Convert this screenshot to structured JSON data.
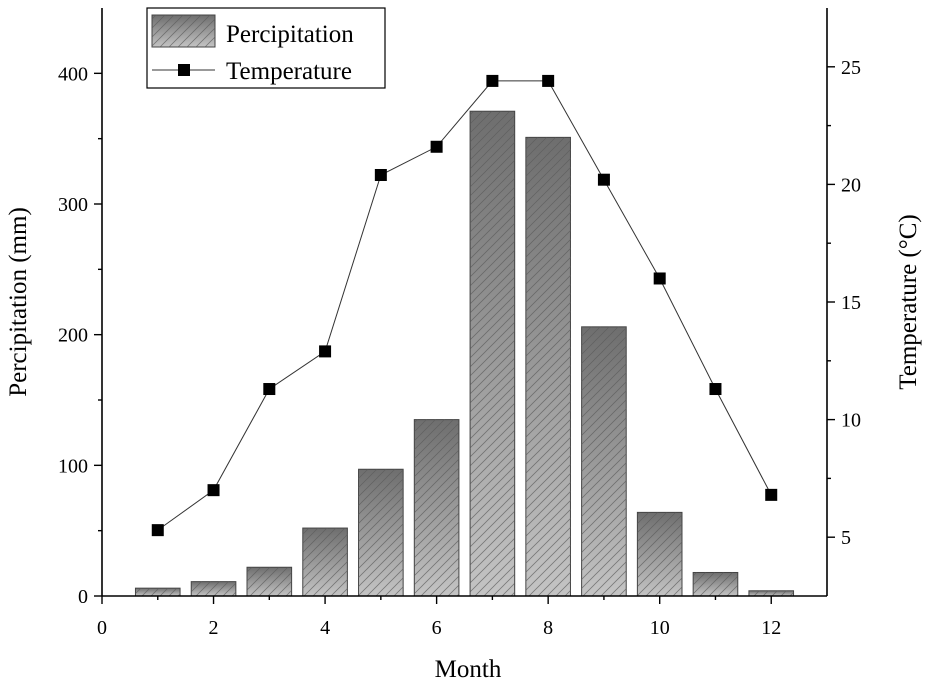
{
  "chart_data": {
    "type": "bar",
    "xlabel": "Month",
    "ylabel_left": "Percipitation (mm)",
    "ylabel_right": "Temperature (°C)",
    "xlim": [
      0,
      13
    ],
    "ylim_left": [
      0,
      450
    ],
    "ylim_right": [
      2.5,
      27.5
    ],
    "x_ticks": [
      0,
      2,
      4,
      6,
      8,
      10,
      12
    ],
    "y_left_ticks": [
      0,
      100,
      200,
      300,
      400
    ],
    "y_right_ticks": [
      5,
      10,
      15,
      20,
      25
    ],
    "grid": false,
    "legend_position": "top-left",
    "series": [
      {
        "name": "Percipitation",
        "kind": "bar",
        "axis": "left",
        "x": [
          1,
          2,
          3,
          4,
          5,
          6,
          7,
          8,
          9,
          10,
          11,
          12
        ],
        "values": [
          6,
          11,
          22,
          52,
          97,
          135,
          371,
          351,
          206,
          64,
          18,
          4
        ]
      },
      {
        "name": "Temperature",
        "kind": "line",
        "axis": "right",
        "x": [
          1,
          2,
          3,
          4,
          5,
          6,
          7,
          8,
          9,
          10,
          11,
          12
        ],
        "values": [
          5.3,
          7.0,
          11.3,
          12.9,
          20.4,
          21.6,
          24.4,
          24.4,
          20.2,
          16.0,
          11.3,
          6.8
        ]
      }
    ]
  }
}
